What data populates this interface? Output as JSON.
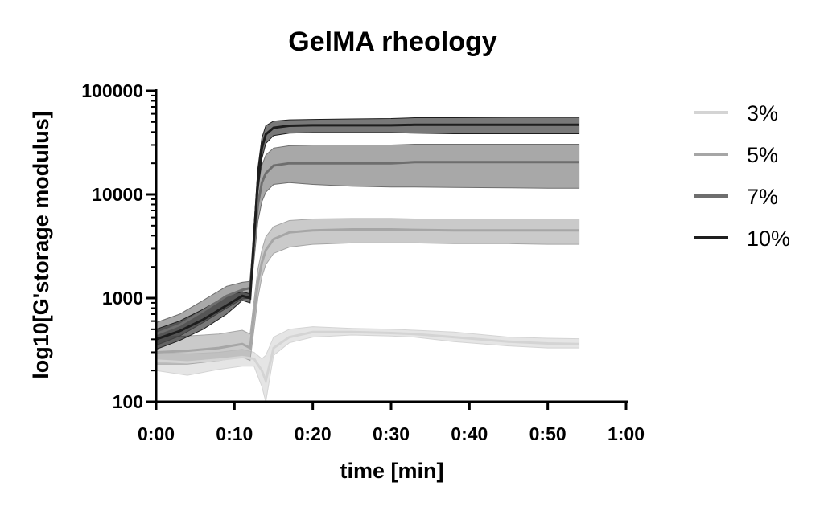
{
  "chart_data": {
    "type": "line",
    "title": "GelMA rheology",
    "xlabel": "time [min]",
    "ylabel": "log10[G'storage modulus]",
    "x_ticks": [
      "0:00",
      "0:10",
      "0:20",
      "0:30",
      "0:40",
      "0:50",
      "1:00"
    ],
    "y_ticks": [
      "100",
      "1000",
      "10000",
      "100000"
    ],
    "xlim": [
      0,
      60
    ],
    "ylim": [
      100,
      100000
    ],
    "y_scale": "log",
    "grid": false,
    "legend_position": "right",
    "series": [
      {
        "name": "3%",
        "color": "#d4d4d4",
        "x": [
          0,
          4,
          8,
          11,
          12.5,
          13.5,
          14,
          15,
          17,
          20,
          25,
          30,
          33,
          38,
          45,
          50,
          54
        ],
        "y": [
          250,
          240,
          255,
          270,
          260,
          200,
          160,
          330,
          420,
          470,
          470,
          460,
          450,
          420,
          380,
          365,
          360
        ],
        "upper": [
          300,
          290,
          300,
          320,
          300,
          260,
          280,
          420,
          500,
          530,
          510,
          500,
          490,
          470,
          420,
          410,
          405
        ],
        "lower": [
          200,
          180,
          205,
          220,
          220,
          140,
          100,
          280,
          370,
          420,
          440,
          430,
          420,
          380,
          345,
          330,
          330
        ]
      },
      {
        "name": "5%",
        "color": "#a6a6a6",
        "x": [
          0,
          4,
          8,
          11,
          12,
          12.5,
          13,
          13.5,
          14,
          15,
          17,
          20,
          25,
          30,
          33,
          38,
          45,
          50,
          54
        ],
        "y": [
          300,
          310,
          330,
          360,
          330,
          700,
          1400,
          2200,
          2900,
          3700,
          4300,
          4500,
          4600,
          4600,
          4550,
          4500,
          4500,
          4500,
          4500
        ],
        "upper": [
          420,
          430,
          450,
          490,
          450,
          950,
          1900,
          2900,
          3900,
          4900,
          5600,
          5800,
          5850,
          5850,
          5800,
          5800,
          5800,
          5800,
          5800
        ],
        "lower": [
          230,
          230,
          250,
          270,
          250,
          500,
          1000,
          1600,
          2100,
          2700,
          3100,
          3300,
          3400,
          3400,
          3400,
          3350,
          3350,
          3300,
          3300
        ]
      },
      {
        "name": "7%",
        "color": "#6e6e6e",
        "x": [
          0,
          3,
          6,
          9,
          11,
          12,
          12.5,
          13,
          13.5,
          14,
          15,
          17,
          20,
          25,
          30,
          33,
          38,
          45,
          50,
          54
        ],
        "y": [
          450,
          550,
          750,
          1050,
          1200,
          1250,
          3500,
          8000,
          13000,
          16000,
          19000,
          20000,
          20000,
          20000,
          20000,
          20500,
          20500,
          20500,
          20500,
          20500
        ],
        "upper": [
          580,
          700,
          950,
          1300,
          1420,
          1450,
          5000,
          12000,
          19000,
          24000,
          28000,
          29500,
          30000,
          30000,
          30000,
          30500,
          30500,
          30500,
          30500,
          30500
        ],
        "lower": [
          350,
          430,
          580,
          800,
          980,
          1000,
          2300,
          5500,
          8500,
          10500,
          12500,
          13000,
          12500,
          12000,
          11800,
          11800,
          11700,
          11600,
          11500,
          11500
        ]
      },
      {
        "name": "10%",
        "color": "#1e1e1e",
        "x": [
          0,
          3,
          6,
          9,
          11,
          12,
          12.5,
          13,
          13.5,
          14,
          15,
          17,
          20,
          25,
          30,
          33,
          38,
          45,
          50,
          54
        ],
        "y": [
          400,
          480,
          620,
          850,
          1050,
          1000,
          3800,
          14000,
          28000,
          38000,
          44000,
          46000,
          46500,
          46500,
          46500,
          47000,
          47000,
          47000,
          47000,
          47000
        ],
        "upper": [
          500,
          600,
          780,
          1050,
          1150,
          1100,
          5000,
          18000,
          35000,
          46000,
          51000,
          52500,
          53000,
          53500,
          54000,
          55000,
          55000,
          55500,
          55500,
          55500
        ],
        "lower": [
          320,
          390,
          500,
          700,
          950,
          900,
          2800,
          10500,
          22000,
          31000,
          37000,
          39000,
          39500,
          39500,
          39500,
          39000,
          38500,
          38500,
          38500,
          38500
        ]
      }
    ]
  }
}
